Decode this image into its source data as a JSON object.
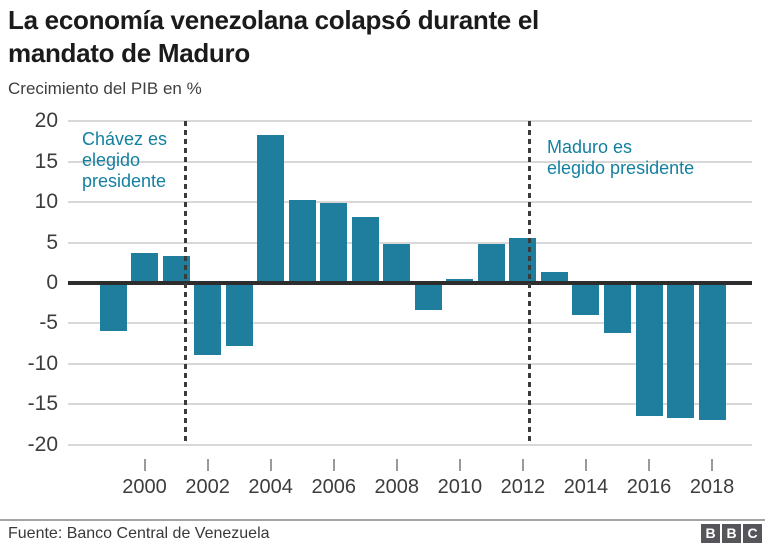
{
  "header": {
    "title": "La economía venezolana colapsó durante el mandato de Maduro",
    "title_lines": [
      "La economía venezolana colapsó durante el",
      "mandato de Maduro"
    ],
    "subtitle": "Crecimiento del PIB en %"
  },
  "chart_data": {
    "type": "bar",
    "title": "La economía venezolana colapsó durante el mandato de Maduro",
    "ylabel": "Crecimiento del PIB en %",
    "categories": [
      1999,
      2000,
      2001,
      2002,
      2003,
      2004,
      2005,
      2006,
      2007,
      2008,
      2009,
      2010,
      2011,
      2012,
      2013,
      2014,
      2015,
      2016,
      2017,
      2018
    ],
    "values": [
      -6.0,
      3.7,
      3.4,
      -8.9,
      -7.8,
      18.3,
      10.3,
      9.9,
      8.2,
      4.8,
      -3.3,
      0.5,
      4.8,
      5.6,
      1.3,
      -3.9,
      -6.2,
      -16.4,
      -16.7,
      -16.9
    ],
    "ylim": [
      -20,
      20
    ],
    "y_tick_step": 5,
    "y_tick_labels": [
      "20",
      "15",
      "10",
      "5",
      "0",
      "-5",
      "-10",
      "-15",
      "-20"
    ],
    "x_tick_labels": [
      "2000",
      "2002",
      "2004",
      "2006",
      "2008",
      "2010",
      "2012",
      "2014",
      "2016",
      "2018"
    ],
    "grid": true,
    "legend": "none",
    "annotations": [
      {
        "x_year": 2001.3,
        "label": "Chávez es elegido presidente",
        "lines": [
          "Chávez es",
          "elegido",
          "presidente"
        ]
      },
      {
        "x_year": 2012.2,
        "label": "Maduro es elegido presidente",
        "lines": [
          "Maduro es",
          "elegido presidente"
        ]
      }
    ]
  },
  "footer": {
    "source": "Fuente: Banco Central de Venezuela",
    "logo_letters": [
      "B",
      "B",
      "C"
    ]
  },
  "colors": {
    "bar": "#1f7e9d",
    "ann": "#1380a1",
    "grid": "#d8d8d8",
    "zero": "#2d2d2d",
    "dash": "#3b3b3b"
  }
}
